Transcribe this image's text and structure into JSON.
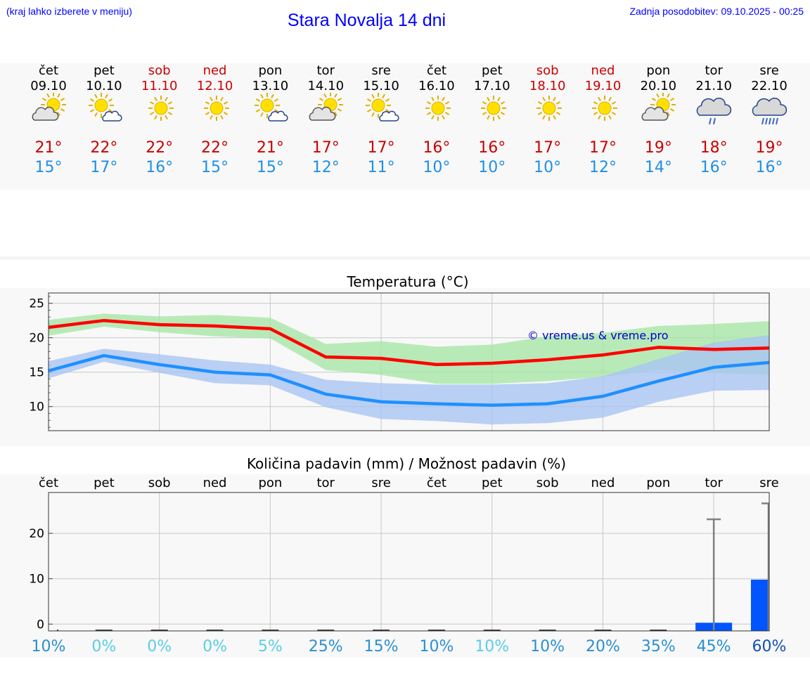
{
  "header": {
    "left_note": "(kraj lahko izberete v meniju)",
    "title": "Stara Novalja 14 dni",
    "updated": "Zadnja posodobitev: 09.10.2025 - 00:25"
  },
  "days": [
    {
      "name": "čet",
      "date": "09.10",
      "weekend": false,
      "icon": "partly-cloudy-icon",
      "max": "21°",
      "min": "15°"
    },
    {
      "name": "pet",
      "date": "10.10",
      "weekend": false,
      "icon": "sun-behind-small-cloud-icon",
      "max": "22°",
      "min": "17°"
    },
    {
      "name": "sob",
      "date": "11.10",
      "weekend": true,
      "icon": "sunny-icon",
      "max": "22°",
      "min": "16°"
    },
    {
      "name": "ned",
      "date": "12.10",
      "weekend": true,
      "icon": "sunny-icon",
      "max": "22°",
      "min": "15°"
    },
    {
      "name": "pon",
      "date": "13.10",
      "weekend": false,
      "icon": "sun-behind-small-cloud-icon",
      "max": "21°",
      "min": "15°"
    },
    {
      "name": "tor",
      "date": "14.10",
      "weekend": false,
      "icon": "partly-cloudy-icon",
      "max": "17°",
      "min": "12°"
    },
    {
      "name": "sre",
      "date": "15.10",
      "weekend": false,
      "icon": "sun-behind-small-cloud-icon",
      "max": "17°",
      "min": "11°"
    },
    {
      "name": "čet",
      "date": "16.10",
      "weekend": false,
      "icon": "sunny-icon",
      "max": "16°",
      "min": "10°"
    },
    {
      "name": "pet",
      "date": "17.10",
      "weekend": false,
      "icon": "sunny-icon",
      "max": "16°",
      "min": "10°"
    },
    {
      "name": "sob",
      "date": "18.10",
      "weekend": true,
      "icon": "sunny-icon",
      "max": "17°",
      "min": "10°"
    },
    {
      "name": "ned",
      "date": "19.10",
      "weekend": true,
      "icon": "sunny-icon",
      "max": "17°",
      "min": "12°"
    },
    {
      "name": "pon",
      "date": "20.10",
      "weekend": false,
      "icon": "partly-cloudy-icon",
      "max": "19°",
      "min": "14°"
    },
    {
      "name": "tor",
      "date": "21.10",
      "weekend": false,
      "icon": "cloud-light-rain-icon",
      "max": "18°",
      "min": "16°"
    },
    {
      "name": "sre",
      "date": "22.10",
      "weekend": false,
      "icon": "cloud-rain-icon",
      "max": "19°",
      "min": "16°"
    }
  ],
  "colors": {
    "max_line": "#ff0000",
    "min_line": "#1e90ff",
    "max_band": "#a8e6a8",
    "min_band": "#a9c4f2",
    "precip_bar": "#0055ff",
    "error_bar": "#808080",
    "weekend_text": "#cc0000",
    "temp_max_text": "#cc0000",
    "temp_min_text": "#1e90e6"
  },
  "chart_data": [
    {
      "type": "line",
      "title": "Temperatura (°C)",
      "watermark": "© vreme.us & vreme.pro",
      "x": [
        "čet",
        "pet",
        "sob",
        "ned",
        "pon",
        "tor",
        "sre",
        "čet",
        "pet",
        "sob",
        "ned",
        "pon",
        "tor",
        "sre"
      ],
      "ylim": [
        6.5,
        26.5
      ],
      "yticks": [
        10,
        15,
        20,
        25
      ],
      "grid": true,
      "series": [
        {
          "key": "max",
          "values": [
            21.5,
            22.5,
            21.9,
            21.7,
            21.3,
            17.2,
            17.0,
            16.1,
            16.3,
            16.8,
            17.5,
            18.6,
            18.3,
            18.5
          ],
          "band_low": [
            20.3,
            21.6,
            20.8,
            20.2,
            19.9,
            15.3,
            14.6,
            13.3,
            13.3,
            13.7,
            14.3,
            15.3,
            14.9,
            14.6
          ],
          "band_high": [
            22.6,
            23.5,
            23.1,
            23.3,
            22.9,
            19.1,
            19.5,
            18.7,
            19.0,
            20.2,
            20.7,
            21.7,
            22.0,
            22.4
          ]
        },
        {
          "key": "min",
          "values": [
            15.2,
            17.4,
            16.1,
            15.0,
            14.6,
            11.8,
            10.7,
            10.4,
            10.2,
            10.4,
            11.5,
            13.7,
            15.7,
            16.4
          ],
          "band_low": [
            14.1,
            16.5,
            14.9,
            13.4,
            13.1,
            9.9,
            8.2,
            7.9,
            7.4,
            7.6,
            8.4,
            10.7,
            12.3,
            12.4
          ],
          "band_high": [
            16.6,
            18.4,
            17.6,
            16.7,
            16.1,
            13.9,
            13.4,
            13.2,
            13.2,
            13.4,
            14.4,
            16.9,
            19.3,
            20.4
          ]
        }
      ]
    },
    {
      "type": "bar",
      "title": "Količina padavin (mm) / Možnost padavin (%)",
      "categories": [
        "čet",
        "pet",
        "sob",
        "ned",
        "pon",
        "tor",
        "sre",
        "čet",
        "pet",
        "sob",
        "ned",
        "pon",
        "tor",
        "sre"
      ],
      "ylim": [
        -1.5,
        29
      ],
      "yticks": [
        0,
        10,
        20
      ],
      "grid": true,
      "values": [
        0,
        0,
        0,
        0,
        0,
        0,
        0,
        0,
        0,
        0,
        0,
        0,
        0.3,
        9.8
      ],
      "error_high": [
        0,
        0,
        0,
        0,
        0,
        0,
        0,
        0,
        0,
        0,
        0,
        0,
        23.1,
        26.6
      ],
      "probability": [
        "10%",
        "0%",
        "0%",
        "0%",
        "5%",
        "25%",
        "15%",
        "10%",
        "10%",
        "10%",
        "20%",
        "35%",
        "45%",
        "60%"
      ],
      "probability_colors": [
        "#2a90d0",
        "#5acde6",
        "#5acde6",
        "#5acde6",
        "#5acde6",
        "#2a90d0",
        "#2a90d0",
        "#2a90d0",
        "#5acde6",
        "#2a90d0",
        "#2a90d0",
        "#2a90d0",
        "#2a90d0",
        "#1350b0"
      ]
    }
  ]
}
